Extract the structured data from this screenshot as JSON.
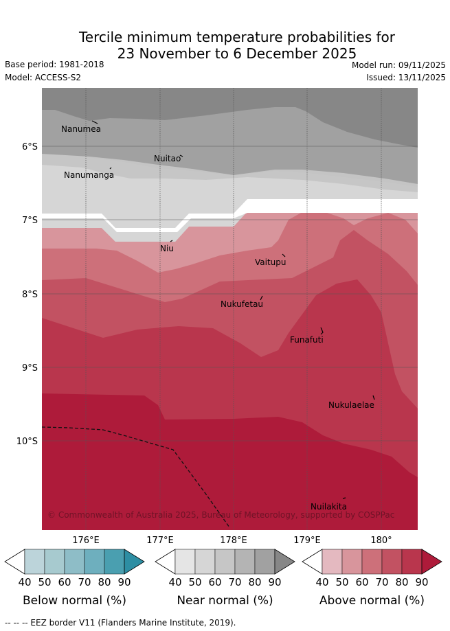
{
  "title_line1": "Tercile minimum temperature probabilities for",
  "title_line2": "23 November to 6 December 2025",
  "meta": {
    "base_period": "Base period: 1981-2018",
    "model": "Model: ACCESS-S2",
    "model_run": "Model run: 09/11/2025",
    "issued": "Issued: 13/11/2025"
  },
  "axes": {
    "lat_labels": [
      "6°S",
      "7°S",
      "8°S",
      "9°S",
      "10°S"
    ],
    "lon_labels": [
      "176°E",
      "177°E",
      "178°E",
      "179°E",
      "180°"
    ]
  },
  "places": [
    "Nanumea",
    "Nuitao",
    "Nanumanga",
    "Niu",
    "Vaitupu",
    "Nukufetau",
    "Funafuti",
    "Nukulaelae",
    "Nuilakita"
  ],
  "copyright": "© Commonwealth of Australia 2025, Bureau of Meteorology, supported by COSPPac",
  "colorbars": [
    {
      "title": "Below normal (%)",
      "ticks": [
        "40",
        "50",
        "60",
        "70",
        "80",
        "90"
      ],
      "colors": [
        "#ffffff",
        "#bcd4da",
        "#a7cacf",
        "#8ebdc7",
        "#6eafbe",
        "#4a9fb0",
        "#2d8ea3"
      ]
    },
    {
      "title": "Near normal (%)",
      "ticks": [
        "40",
        "50",
        "60",
        "70",
        "80",
        "90"
      ],
      "colors": [
        "#ffffff",
        "#e5e5e5",
        "#d6d6d6",
        "#c6c6c6",
        "#b4b4b4",
        "#a1a1a1",
        "#878787"
      ]
    },
    {
      "title": "Above normal (%)",
      "ticks": [
        "40",
        "50",
        "60",
        "70",
        "80",
        "90"
      ],
      "colors": [
        "#ffffff",
        "#e4b9c0",
        "#d8959c",
        "#cd707a",
        "#c25262",
        "#b9364d",
        "#ae1b3a"
      ]
    }
  ],
  "legend": "--  --  -- EEZ border V11 (Flanders Marine Institute, 2019)."
}
